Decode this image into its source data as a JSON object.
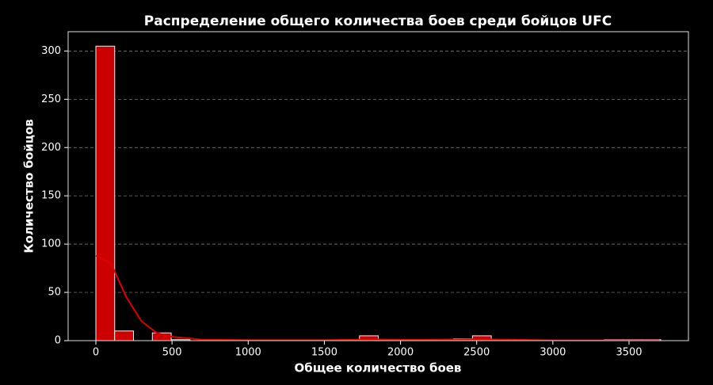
{
  "chart_data": {
    "type": "histogram",
    "title": "Распределение общего количества боев среди бойцов UFC",
    "x_label": "Общее количество боев",
    "y_label": "Количество бойцов",
    "bins": [
      0,
      123.6,
      247.2,
      370.8,
      494.4,
      618,
      741.6,
      865.2,
      988.8,
      1112.4,
      1236,
      1359.6,
      1483.2,
      1606.8,
      1730.4,
      1854,
      1977.6,
      2101.2,
      2224.8,
      2348.4,
      2472,
      2595.6,
      2719.2,
      2842.8,
      2966.4,
      3090,
      3213.6,
      3337.2,
      3460.8,
      3584.4,
      3708
    ],
    "counts": [
      305,
      10,
      0,
      8,
      1,
      0,
      0,
      0,
      0,
      0,
      0,
      0,
      0,
      0,
      5,
      1,
      0,
      1,
      1,
      2,
      5,
      1,
      0,
      0,
      0,
      0,
      0,
      1,
      1,
      1
    ],
    "color": "#cc0000",
    "edge_color": "#f0f0f0",
    "kde": {
      "color": "#e00000",
      "x": [
        0,
        100,
        200,
        300,
        400,
        500,
        700,
        1000,
        1500,
        1800,
        2100,
        2500,
        3000,
        3700
      ],
      "values": [
        88,
        80,
        45,
        20,
        8,
        4,
        1,
        0.5,
        0.5,
        1.2,
        0.8,
        1.5,
        0.3,
        0.3
      ]
    },
    "xlim": [
      -182,
      3890
    ],
    "ylim": [
      0,
      320
    ],
    "xticks": [
      0,
      500,
      1000,
      1500,
      2000,
      2500,
      3000,
      3500
    ],
    "yticks": [
      0,
      50,
      100,
      150,
      200,
      250,
      300
    ],
    "grid": true
  }
}
